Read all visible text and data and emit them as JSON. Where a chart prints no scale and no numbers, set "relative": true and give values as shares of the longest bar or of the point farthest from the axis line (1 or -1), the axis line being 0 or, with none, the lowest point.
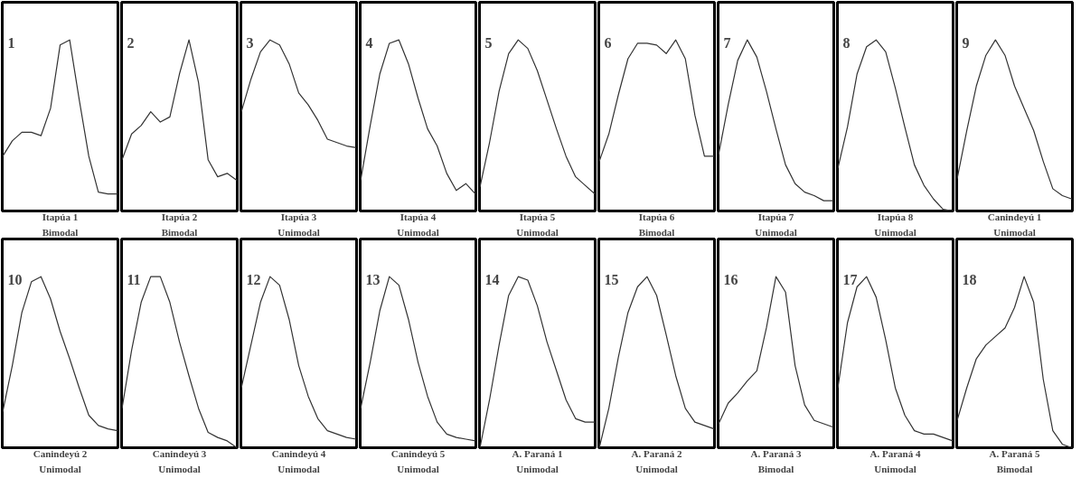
{
  "chart_data": [
    {
      "type": "line",
      "relative": true,
      "title": "1",
      "xlabel": "Itapúa 1",
      "annotations": [
        "Bimodal"
      ],
      "color": "#333333",
      "categories": [
        null,
        null,
        null,
        null,
        null,
        null,
        null,
        null,
        null,
        null,
        null,
        null,
        null
      ],
      "values": [
        0.32,
        0.41,
        0.46,
        0.46,
        0.44,
        0.6,
        0.97,
        1.0,
        0.65,
        0.32,
        0.11,
        0.1,
        0.1
      ]
    },
    {
      "type": "line",
      "relative": true,
      "title": "2",
      "xlabel": "Itapúa 2",
      "annotations": [
        "Bimodal"
      ],
      "color": "#333333",
      "categories": [
        null,
        null,
        null,
        null,
        null,
        null,
        null,
        null,
        null,
        null,
        null,
        null,
        null
      ],
      "values": [
        0.3,
        0.45,
        0.5,
        0.58,
        0.52,
        0.55,
        0.8,
        1.0,
        0.75,
        0.3,
        0.2,
        0.22,
        0.18
      ]
    },
    {
      "type": "line",
      "relative": true,
      "title": "3",
      "xlabel": "Itapúa 3",
      "annotations": [
        "Unimodal"
      ],
      "color": "#333333",
      "categories": [
        null,
        null,
        null,
        null,
        null,
        null,
        null,
        null,
        null,
        null,
        null,
        null,
        null
      ],
      "values": [
        0.58,
        0.77,
        0.93,
        1.0,
        0.97,
        0.86,
        0.69,
        0.62,
        0.53,
        0.42,
        0.4,
        0.38,
        0.37
      ]
    },
    {
      "type": "line",
      "relative": true,
      "title": "4",
      "xlabel": "Itapúa 4",
      "annotations": [
        "Unimodal"
      ],
      "color": "#333333",
      "categories": [
        null,
        null,
        null,
        null,
        null,
        null,
        null,
        null,
        null,
        null,
        null,
        null,
        null
      ],
      "values": [
        0.18,
        0.5,
        0.8,
        0.98,
        1.0,
        0.86,
        0.66,
        0.48,
        0.38,
        0.22,
        0.12,
        0.16,
        0.1
      ]
    },
    {
      "type": "line",
      "relative": true,
      "title": "5",
      "xlabel": "Itapúa 5",
      "annotations": [
        "Unimodal"
      ],
      "color": "#333333",
      "categories": [
        null,
        null,
        null,
        null,
        null,
        null,
        null,
        null,
        null,
        null,
        null,
        null,
        null
      ],
      "values": [
        0.14,
        0.4,
        0.7,
        0.92,
        1.0,
        0.95,
        0.82,
        0.65,
        0.48,
        0.32,
        0.2,
        0.15,
        0.1
      ]
    },
    {
      "type": "line",
      "relative": true,
      "title": "6",
      "xlabel": "Itapúa 6",
      "annotations": [
        "Bimodal"
      ],
      "color": "#333333",
      "categories": [
        null,
        null,
        null,
        null,
        null,
        null,
        null,
        null,
        null,
        null,
        null,
        null,
        null
      ],
      "values": [
        0.29,
        0.45,
        0.68,
        0.89,
        0.98,
        0.98,
        0.97,
        0.92,
        1.0,
        0.89,
        0.56,
        0.32,
        0.32
      ]
    },
    {
      "type": "line",
      "relative": true,
      "title": "7",
      "xlabel": "Itapúa 7",
      "annotations": [
        "Unimodal"
      ],
      "color": "#333333",
      "categories": [
        null,
        null,
        null,
        null,
        null,
        null,
        null,
        null,
        null,
        null,
        null,
        null,
        null
      ],
      "values": [
        0.33,
        0.62,
        0.88,
        1.0,
        0.9,
        0.7,
        0.48,
        0.27,
        0.16,
        0.11,
        0.09,
        0.06,
        0.06
      ]
    },
    {
      "type": "line",
      "relative": true,
      "title": "8",
      "xlabel": "Itapúa 8",
      "annotations": [
        "Unimodal"
      ],
      "color": "#333333",
      "categories": [
        null,
        null,
        null,
        null,
        null,
        null,
        null,
        null,
        null,
        null,
        null,
        null,
        null
      ],
      "values": [
        0.25,
        0.49,
        0.8,
        0.96,
        1.0,
        0.93,
        0.72,
        0.49,
        0.27,
        0.15,
        0.07,
        0.01,
        0.0
      ]
    },
    {
      "type": "line",
      "relative": true,
      "title": "9",
      "xlabel": "Canindeyú 1",
      "annotations": [
        "Unimodal"
      ],
      "color": "#333333",
      "categories": [
        null,
        null,
        null,
        null,
        null,
        null,
        null,
        null,
        null,
        null,
        null,
        null,
        null
      ],
      "values": [
        0.19,
        0.47,
        0.73,
        0.91,
        1.0,
        0.91,
        0.73,
        0.6,
        0.47,
        0.29,
        0.13,
        0.09,
        0.07
      ]
    },
    {
      "type": "line",
      "relative": true,
      "title": "10",
      "xlabel": "Canindeyú 2",
      "annotations": [
        "Unimodal"
      ],
      "color": "#333333",
      "categories": [
        null,
        null,
        null,
        null,
        null,
        null,
        null,
        null,
        null,
        null,
        null,
        null,
        null
      ],
      "values": [
        0.21,
        0.48,
        0.79,
        0.97,
        1.0,
        0.87,
        0.68,
        0.52,
        0.35,
        0.19,
        0.13,
        0.11,
        0.1
      ]
    },
    {
      "type": "line",
      "relative": true,
      "title": "11",
      "xlabel": "Canindeyú 3",
      "annotations": [
        "Unimodal"
      ],
      "color": "#333333",
      "categories": [
        null,
        null,
        null,
        null,
        null,
        null,
        null,
        null,
        null,
        null,
        null,
        null,
        null
      ],
      "values": [
        0.23,
        0.57,
        0.85,
        1.0,
        1.0,
        0.85,
        0.62,
        0.42,
        0.23,
        0.09,
        0.06,
        0.04,
        0.0
      ]
    },
    {
      "type": "line",
      "relative": true,
      "title": "12",
      "xlabel": "Canindeyú 4",
      "annotations": [
        "Unimodal"
      ],
      "color": "#333333",
      "categories": [
        null,
        null,
        null,
        null,
        null,
        null,
        null,
        null,
        null,
        null,
        null,
        null,
        null
      ],
      "values": [
        0.35,
        0.6,
        0.85,
        1.0,
        0.95,
        0.75,
        0.48,
        0.3,
        0.17,
        0.1,
        0.08,
        0.06,
        0.05
      ]
    },
    {
      "type": "line",
      "relative": true,
      "title": "13",
      "xlabel": "Canindeyú 5",
      "annotations": [
        "Unimodal"
      ],
      "color": "#333333",
      "categories": [
        null,
        null,
        null,
        null,
        null,
        null,
        null,
        null,
        null,
        null,
        null,
        null,
        null
      ],
      "values": [
        0.23,
        0.5,
        0.8,
        1.0,
        0.95,
        0.75,
        0.5,
        0.3,
        0.15,
        0.08,
        0.06,
        0.05,
        0.04
      ]
    },
    {
      "type": "line",
      "relative": true,
      "title": "14",
      "xlabel": "A. Paraná 1",
      "annotations": [
        "Unimodal"
      ],
      "color": "#333333",
      "categories": [
        null,
        null,
        null,
        null,
        null,
        null,
        null,
        null,
        null,
        null,
        null,
        null,
        null
      ],
      "values": [
        0.0,
        0.28,
        0.6,
        0.89,
        1.0,
        0.98,
        0.83,
        0.62,
        0.45,
        0.28,
        0.17,
        0.15,
        0.15
      ]
    },
    {
      "type": "line",
      "relative": true,
      "title": "15",
      "xlabel": "A. Paraná 2",
      "annotations": [
        "Unimodal"
      ],
      "color": "#333333",
      "categories": [
        null,
        null,
        null,
        null,
        null,
        null,
        null,
        null,
        null,
        null,
        null,
        null,
        null
      ],
      "values": [
        0.0,
        0.23,
        0.53,
        0.79,
        0.94,
        1.0,
        0.89,
        0.66,
        0.42,
        0.23,
        0.15,
        0.13,
        0.11
      ]
    },
    {
      "type": "line",
      "relative": true,
      "title": "16",
      "xlabel": "A. Paraná 3",
      "annotations": [
        "Bimodal"
      ],
      "color": "#333333",
      "categories": [
        null,
        null,
        null,
        null,
        null,
        null,
        null,
        null,
        null,
        null,
        null,
        null,
        null
      ],
      "values": [
        0.14,
        0.26,
        0.32,
        0.39,
        0.45,
        0.7,
        1.0,
        0.91,
        0.48,
        0.25,
        0.16,
        0.14,
        0.12
      ]
    },
    {
      "type": "line",
      "relative": true,
      "title": "17",
      "xlabel": "A. Paraná 4",
      "annotations": [
        "Unimodal"
      ],
      "color": "#333333",
      "categories": [
        null,
        null,
        null,
        null,
        null,
        null,
        null,
        null,
        null,
        null,
        null,
        null,
        null
      ],
      "values": [
        0.35,
        0.73,
        0.94,
        1.0,
        0.88,
        0.63,
        0.35,
        0.19,
        0.1,
        0.08,
        0.08,
        0.06,
        0.04
      ]
    },
    {
      "type": "line",
      "relative": true,
      "title": "18",
      "xlabel": "A. Paraná 5",
      "annotations": [
        "Bimodal"
      ],
      "color": "#333333",
      "categories": [
        null,
        null,
        null,
        null,
        null,
        null,
        null,
        null,
        null,
        null,
        null,
        null,
        null
      ],
      "values": [
        0.16,
        0.35,
        0.52,
        0.6,
        0.65,
        0.7,
        0.82,
        1.0,
        0.85,
        0.4,
        0.1,
        0.02,
        0.0
      ]
    }
  ]
}
